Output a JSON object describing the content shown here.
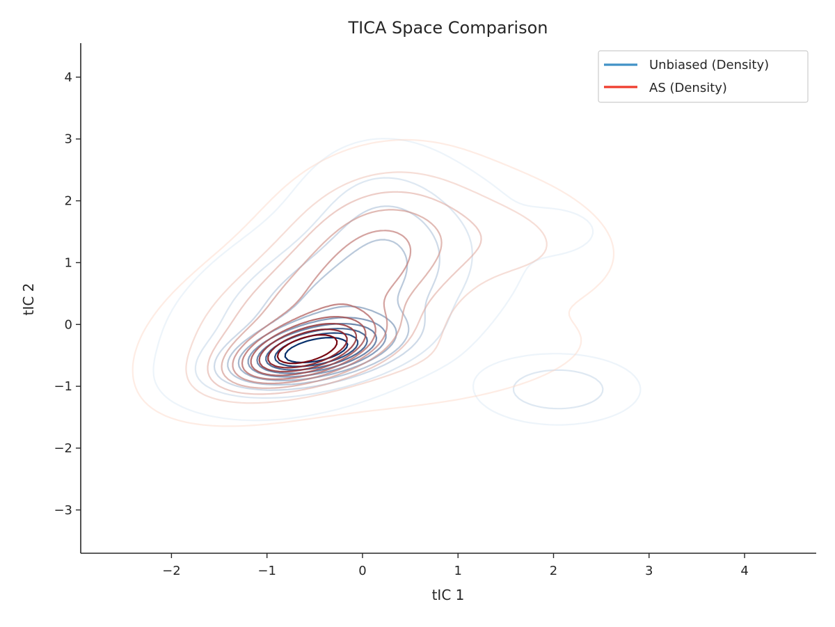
{
  "chart_data": {
    "type": "contour",
    "title": "TICA Space Comparison",
    "xlabel": "tIC 1",
    "ylabel": "tIC 2",
    "xlim": [
      -2.95,
      4.75
    ],
    "ylim": [
      -3.7,
      4.55
    ],
    "xticks": [
      -2,
      -1,
      0,
      1,
      2,
      3,
      4
    ],
    "yticks": [
      -3,
      -2,
      -1,
      0,
      1,
      2,
      3,
      4
    ],
    "xtick_labels": [
      "−2",
      "−1",
      "0",
      "1",
      "2",
      "3",
      "4"
    ],
    "ytick_labels": [
      "−3",
      "−2",
      "−1",
      "0",
      "1",
      "2",
      "3",
      "4"
    ],
    "grid": false,
    "legend": {
      "position": "top-right"
    },
    "series": [
      {
        "name": "Unbiased (Density)",
        "colormap": "Blues",
        "legend_color": "#4292c6",
        "levels": 10,
        "modes": [
          {
            "center": [
              -0.5,
              -0.45
            ],
            "sigma": [
              0.55,
              0.32
            ],
            "rho": 0.45,
            "weight": 1.0
          },
          {
            "center": [
              -0.2,
              0.4
            ],
            "sigma": [
              0.9,
              0.9
            ],
            "rho": 0.45,
            "weight": 0.45
          },
          {
            "center": [
              0.2,
              1.8
            ],
            "sigma": [
              0.5,
              0.7
            ],
            "rho": 0.0,
            "weight": 0.18
          },
          {
            "center": [
              2.05,
              -1.05
            ],
            "sigma": [
              0.45,
              0.3
            ],
            "rho": 0.0,
            "weight": 0.28
          },
          {
            "center": [
              2.05,
              1.5
            ],
            "sigma": [
              0.3,
              0.25
            ],
            "rho": 0.0,
            "weight": 0.08
          }
        ]
      },
      {
        "name": "AS (Density)",
        "colormap": "Reds",
        "legend_color": "#ef3b2c",
        "levels": 10,
        "modes": [
          {
            "center": [
              -0.6,
              -0.45
            ],
            "sigma": [
              0.5,
              0.35
            ],
            "rho": 0.5,
            "weight": 1.0
          },
          {
            "center": [
              -0.3,
              0.4
            ],
            "sigma": [
              0.95,
              0.9
            ],
            "rho": 0.55,
            "weight": 0.55
          },
          {
            "center": [
              0.15,
              1.6
            ],
            "sigma": [
              0.6,
              0.7
            ],
            "rho": 0.2,
            "weight": 0.3
          },
          {
            "center": [
              1.7,
              1.3
            ],
            "sigma": [
              0.6,
              0.55
            ],
            "rho": -0.2,
            "weight": 0.15
          },
          {
            "center": [
              0.9,
              -0.6
            ],
            "sigma": [
              1.0,
              0.5
            ],
            "rho": 0.4,
            "weight": 0.12
          }
        ]
      }
    ]
  }
}
